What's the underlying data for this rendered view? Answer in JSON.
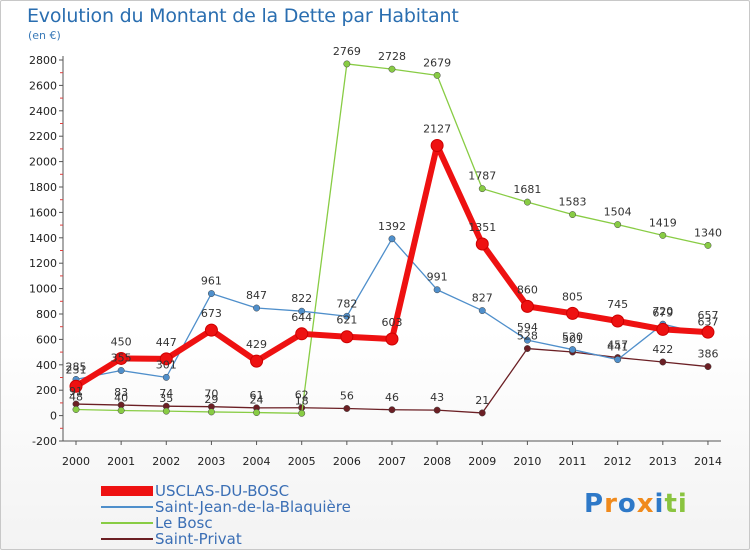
{
  "title": "Evolution du Montant de la Dette par Habitant",
  "subtitle": "(en €)",
  "brand": [
    "P",
    "r",
    "o",
    "x",
    "i",
    "ti"
  ],
  "chart_data": {
    "type": "line",
    "title": "Evolution du Montant de la Dette par Habitant",
    "ylabel": "(en €)",
    "xlabel": "",
    "x": [
      "2000",
      "2001",
      "2002",
      "2003",
      "2004",
      "2005",
      "2006",
      "2007",
      "2008",
      "2009",
      "2010",
      "2011",
      "2012",
      "2013",
      "2014"
    ],
    "ylim": [
      -200,
      2800
    ],
    "yticks": [
      -200,
      0,
      200,
      400,
      600,
      800,
      1000,
      1200,
      1400,
      1600,
      1800,
      2000,
      2200,
      2400,
      2600,
      2800
    ],
    "grid": false,
    "legend": "bottom-left",
    "series": [
      {
        "name": "Saint-Privat",
        "color": "#6b1f24",
        "values": [
          91,
          83,
          74,
          70,
          61,
          62,
          56,
          46,
          43,
          21,
          528,
          501,
          457,
          422,
          386
        ]
      },
      {
        "name": "Le Bosc",
        "color": "#88cc44",
        "values": [
          48,
          40,
          35,
          29,
          24,
          18,
          2769,
          2728,
          2679,
          1787,
          1681,
          1583,
          1504,
          1419,
          1340
        ]
      },
      {
        "name": "Saint-Jean-de-la-Blaquière",
        "color": "#4f8fcb",
        "values": [
          285,
          355,
          301,
          961,
          847,
          822,
          782,
          1392,
          991,
          827,
          594,
          520,
          441,
          720,
          637
        ]
      },
      {
        "name": "USCLAS-DU-BOSC",
        "color": "#ee1111",
        "values": [
          231,
          450,
          447,
          673,
          429,
          644,
          621,
          603,
          2127,
          1351,
          860,
          805,
          745,
          679,
          657
        ]
      }
    ],
    "labels": {
      "Saint-Privat": [
        "91",
        "83",
        "74",
        "70",
        "61",
        "62",
        "56",
        "46",
        "43",
        "21",
        "528",
        "501",
        "457",
        "422",
        "386"
      ],
      "Le Bosc": [
        "48",
        "40",
        "35",
        "29",
        "24",
        "18",
        "2769",
        "2728",
        "2679",
        "1787",
        "1681",
        "1583",
        "1504",
        "1419",
        "1340"
      ],
      "Saint-Jean-de-la-Blaquière": [
        "285",
        "355",
        "301",
        "961",
        "847",
        "822",
        "782",
        "1392",
        "991",
        "827",
        "594",
        "520",
        "441",
        "720",
        "637"
      ],
      "USCLAS-DU-BOSC": [
        "231",
        "450",
        "447",
        "673",
        "429",
        "644",
        "621",
        "603",
        "2127",
        "1351",
        "860",
        "805",
        "745",
        "679",
        "657"
      ]
    },
    "legend_order": [
      "USCLAS-DU-BOSC",
      "Saint-Jean-de-la-Blaquière",
      "Le Bosc",
      "Saint-Privat"
    ]
  }
}
